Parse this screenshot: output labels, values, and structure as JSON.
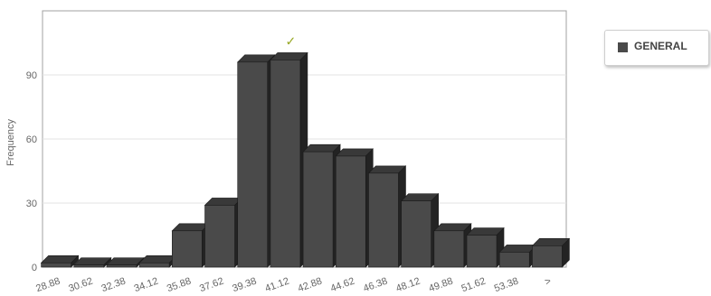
{
  "chart_data": {
    "type": "bar",
    "style": "3d-column",
    "categories": [
      "28.88",
      "30.62",
      "32.38",
      "34.12",
      "35.88",
      "37.62",
      "39.38",
      "41.12",
      "42.88",
      "44.62",
      "46.38",
      "48.12",
      "49.88",
      "51.62",
      "53.38",
      ">"
    ],
    "series": [
      {
        "name": "GENERAL",
        "values": [
          2,
          1,
          1,
          2,
          17,
          29,
          96,
          97,
          54,
          52,
          44,
          31,
          17,
          15,
          7,
          10
        ]
      }
    ],
    "ylabel": "Frequency",
    "xlabel": "",
    "ylim": [
      0,
      120
    ],
    "yticks": [
      0,
      30,
      60,
      90
    ],
    "grid": true,
    "legend_position": "right",
    "annotation": {
      "category": "41.12",
      "symbol": "✓",
      "color": "#9aaa2a"
    },
    "colors": {
      "bar_front": "#4a4a4a",
      "bar_top": "#393939",
      "bar_side": "#232323",
      "grid": "#e3e3e3",
      "frame": "#a0a0a0"
    }
  }
}
